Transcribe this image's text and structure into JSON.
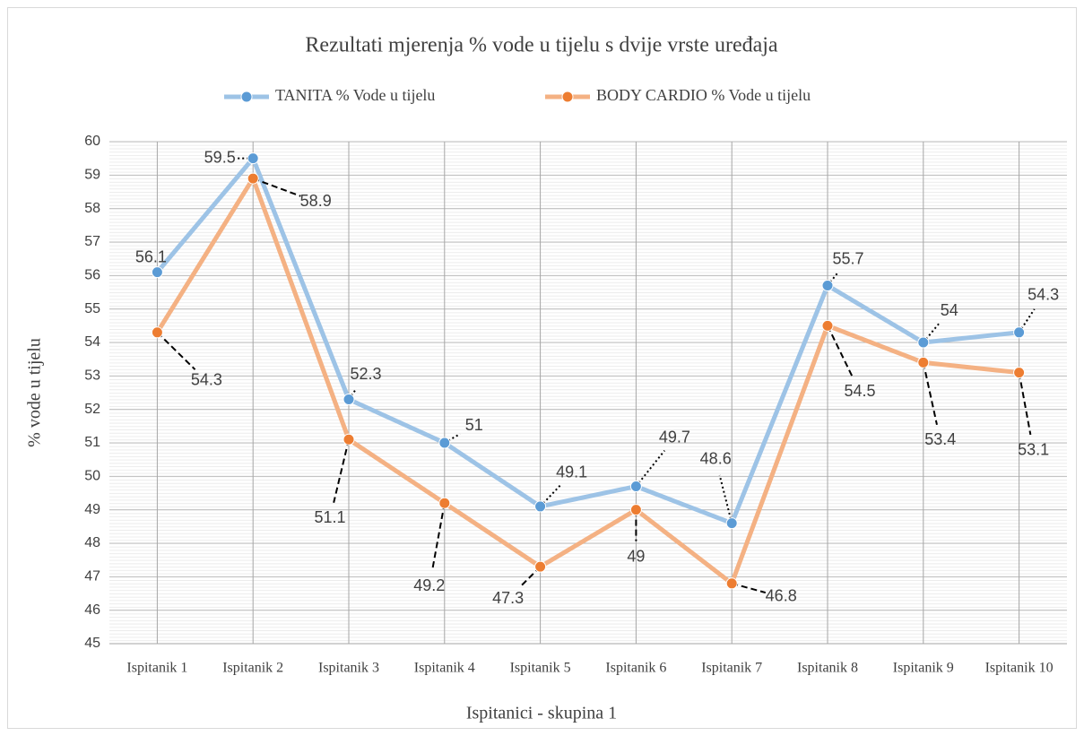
{
  "chart_data": {
    "type": "line",
    "title": "Rezultati mjerenja % vode u tijelu s dvije vrste uređaja",
    "x_label": "Ispitanici - skupina 1",
    "y_label": "% vode u tijelu",
    "categories": [
      "Ispitanik 1",
      "Ispitanik 2",
      "Ispitanik 3",
      "Ispitanik 4",
      "Ispitanik 5",
      "Ispitanik 6",
      "Ispitanik 7",
      "Ispitanik 8",
      "Ispitanik 9",
      "Ispitanik 10"
    ],
    "series": [
      {
        "name": "TANITA % Vode u tijelu",
        "color": "#9dc3e6",
        "marker_color": "#5b9bd5",
        "values": [
          56.1,
          59.5,
          52.3,
          51,
          49.1,
          49.7,
          48.6,
          55.7,
          54,
          54.3
        ]
      },
      {
        "name": "BODY CARDIO % Vode u tijelu",
        "color": "#f4b183",
        "marker_color": "#ed7d31",
        "values": [
          54.3,
          58.9,
          51.1,
          49.2,
          47.3,
          49,
          46.8,
          54.5,
          53.4,
          53.1
        ]
      }
    ],
    "ylim": [
      45,
      60
    ],
    "yticks": [
      45,
      46,
      47,
      48,
      49,
      50,
      51,
      52,
      53,
      54,
      55,
      56,
      57,
      58,
      59,
      60
    ],
    "grid": true,
    "legend": "top"
  }
}
